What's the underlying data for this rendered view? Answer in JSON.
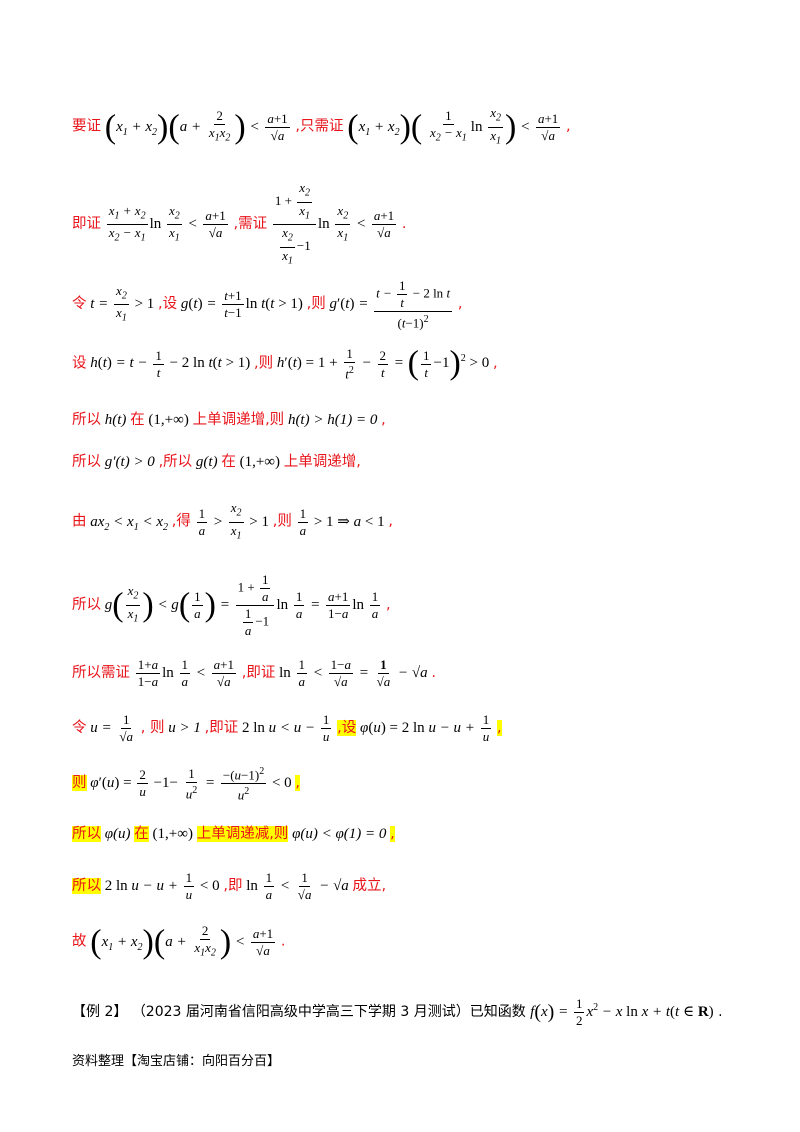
{
  "lines": [
    {
      "label": "要证",
      "math1": "(x₁ + x₂)(a + 2/(x₁x₂)) < (a+1)/√a",
      "label2": ",只需证",
      "math2": "(x₁ + x₂)(1/(x₂ − x₁) ln x₂/x₁) < (a+1)/√a",
      "end": ","
    },
    {
      "label": "即证",
      "math1": "(x₁+x₂)/(x₂−x₁) ln x₂/x₁ < (a+1)/√a",
      "label2": ",需证",
      "math2": "(1 + x₂/x₁)/(x₂/x₁ − 1) ln x₂/x₁ < (a+1)/√a",
      "end": "."
    },
    {
      "label": "令",
      "math1": "t = x₂/x₁ > 1",
      "label2": ",设",
      "math2": "g(t) = (t+1)/(t−1) ln t (t > 1)",
      "label3": ",则",
      "math3": "g′(t) = (t − 1/t − 2 ln t)/(t−1)²",
      "end": ","
    },
    {
      "label": "设",
      "math1": "h(t) = t − 1/t − 2 ln t (t > 1)",
      "label2": ",则",
      "math2": "h′(t) = 1 + 1/t² − 2/t = (1/t − 1)² > 0",
      "end": ","
    },
    {
      "label": "所以",
      "math1": "h(t)",
      "label2": "在",
      "math2": "(1,+∞)",
      "label3": "上单调递增,则",
      "math3": "h(t) > h(1) = 0",
      "end": ","
    },
    {
      "label": "所以",
      "math1": "g′(t) > 0",
      "label2": ",所以",
      "math2": "g(t)",
      "label3": "在",
      "math3": "(1,+∞)",
      "label4": "上单调递增,"
    },
    {
      "label": "由",
      "math1": "ax₂ < x₁ < x₂",
      "label2": ",得",
      "math2": "1/a > x₂/x₁ > 1",
      "label3": ",则",
      "math3": "1/a > 1 ⇒ a < 1",
      "end": ","
    },
    {
      "label": "所以",
      "math1": "g(x₂/x₁) < g(1/a) = (1 + 1/a)/(1/a − 1) ln 1/a = (a+1)/(1−a) ln 1/a",
      "end": ","
    },
    {
      "label": "所以需证",
      "math1": "(1+a)/(1−a) ln 1/a < (a+1)/√a",
      "label2": ",即证",
      "math2": "ln 1/a < (1−a)/√a = 1/√a − √a",
      "end": "."
    },
    {
      "label": "令",
      "math1": "u = 1/√a",
      "label2": ", 则",
      "math2": "u > 1",
      "label3": ",即证",
      "math3": "2 ln u < u − 1/u",
      "label4": ",设",
      "math4": "φ(u) = 2 ln u − u + 1/u",
      "end": ","
    },
    {
      "label": "则",
      "math1": "φ′(u) = 2/u − 1 − 1/u² = −(u−1)²/u² < 0",
      "end": ","
    },
    {
      "label": "所以",
      "math1": "φ(u)",
      "label2": "在",
      "math2": "(1,+∞)",
      "label3": "上单调递减,则",
      "math3": "φ(u) < φ(1) = 0",
      "end": ","
    },
    {
      "label": "所以",
      "math1": "2 ln u − u + 1/u < 0",
      "label2": ",即",
      "math2": "ln 1/a < 1/√a − √a",
      "label3": "成立,"
    },
    {
      "label": "故",
      "math1": "(x₁ + x₂)(a + 2/(x₁x₂)) < (a+1)/√a",
      "end": "."
    }
  ],
  "example": {
    "tag": "【例 2】",
    "text": "（2023 届河南省信阳高级中学高三下学期 3 月测试）已知函数",
    "math": "f(x) = ½x² − x ln x + t(t ∈ R)",
    "end": "."
  },
  "footer": "资料整理【淘宝店铺：向阳百分百】"
}
